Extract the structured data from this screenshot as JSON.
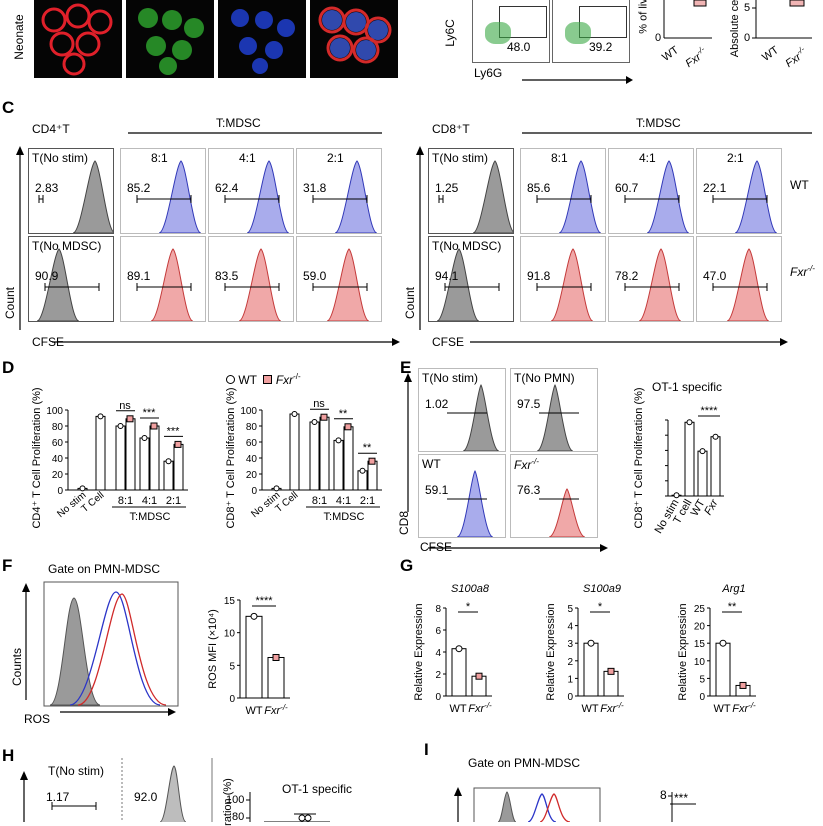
{
  "panel_a": {
    "row_label": "Neonate"
  },
  "panel_b": {
    "ylab": "Ly6C",
    "xlab": "Ly6G",
    "gate1": "48.0",
    "gate2": "39.2",
    "bar_y1": "% of liv",
    "bar_y2": "Absolute cell",
    "x_wt": "WT",
    "x_ko": "Fxr",
    "ko_sup": "-/-"
  },
  "panel_c": {
    "letter": "C",
    "cd4_title": "CD4⁺T",
    "cd8_title": "CD8⁺T",
    "ratio_header": "T:MDSC",
    "col_titles": [
      "T(No stim)",
      "8:1",
      "4:1",
      "2:1"
    ],
    "row2_first": "T(No MDSC)",
    "cd4_wt": [
      "2.83",
      "85.2",
      "62.4",
      "31.8"
    ],
    "cd4_ko": [
      "90.9",
      "89.1",
      "83.5",
      "59.0"
    ],
    "cd8_wt": [
      "1.25",
      "85.6",
      "60.7",
      "22.1"
    ],
    "cd8_ko": [
      "94.1",
      "91.8",
      "78.2",
      "47.0"
    ],
    "row_wt": "WT",
    "row_ko": "Fxr",
    "ko_sup": "-/-",
    "ylab": "Count",
    "xlab": "CFSE"
  },
  "panel_d": {
    "letter": "D",
    "legend_wt": "WT",
    "legend_ko": "Fxr",
    "ko_sup": "-/-",
    "ylab_cd4": "CD4⁺ T Cell Proliferation (%)",
    "ylab_cd8": "CD8⁺ T Cell Proliferation (%)",
    "yticks": [
      "0",
      "20",
      "40",
      "60",
      "80",
      "100"
    ],
    "xcats": [
      "No stim",
      "T Cell",
      "8:1",
      "4:1",
      "2:1"
    ],
    "xgroup": "T:MDSC",
    "sig_cd4": [
      "ns",
      "***",
      "***"
    ],
    "sig_cd8": [
      "ns",
      "**",
      "**"
    ]
  },
  "panel_e": {
    "letter": "E",
    "titles": [
      "T(No stim)",
      "T(No PMN)",
      "WT",
      "Fxr"
    ],
    "vals": [
      "1.02",
      "97.5",
      "59.1",
      "76.3"
    ],
    "ylab": "CD8",
    "xlab": "CFSE",
    "chart_title": "OT-1 specific",
    "chart_ylab": "CD8⁺ T Cell Proliferation (%)",
    "xcats": [
      "No stim",
      "T cell",
      "WT",
      "Fxr"
    ],
    "ko_sup": "-/-",
    "sig": "****"
  },
  "panel_f": {
    "letter": "F",
    "gate": "Gate on PMN-MDSC",
    "ylab": "Counts",
    "xlab": "ROS",
    "bar_ylab": "ROS MFI (×10⁴)",
    "yticks": [
      "0",
      "5",
      "10",
      "15"
    ],
    "sig": "****",
    "x_wt": "WT",
    "x_ko": "Fxr",
    "ko_sup": "-/-"
  },
  "panel_g": {
    "letter": "G",
    "ylab": "Relative Expression",
    "genes": [
      {
        "name": "S100a8",
        "yticks": [
          "0",
          "2",
          "4",
          "6",
          "8"
        ],
        "sig": "*"
      },
      {
        "name": "S100a9",
        "yticks": [
          "0",
          "1",
          "2",
          "3",
          "4",
          "5"
        ],
        "sig": "*"
      },
      {
        "name": "Arg1",
        "yticks": [
          "0",
          "5",
          "10",
          "15",
          "20",
          "25"
        ],
        "sig": "**"
      }
    ],
    "x_wt": "WT",
    "x_ko": "Fxr",
    "ko_sup": "-/-"
  },
  "panel_h": {
    "letter": "H",
    "title1": "T(No stim)",
    "val1": "1.17",
    "val2": "92.0",
    "chart_title": "OT-1 specific",
    "chart_ylab": "ration (%)",
    "yticks": [
      "100",
      "80"
    ]
  },
  "panel_i": {
    "letter": "I",
    "gate": "Gate on PMN-MDSC",
    "sig": "***",
    "ytick": "8"
  },
  "chart_data": [
    {
      "type": "bar",
      "name": "D-CD4",
      "categories": [
        "No stim",
        "T Cell",
        "8:1",
        "4:1",
        "2:1"
      ],
      "series": [
        {
          "name": "WT",
          "values": [
            2,
            92,
            80,
            65,
            36
          ]
        },
        {
          "name": "Fxr-/-",
          "values": [
            null,
            null,
            89,
            80,
            57
          ]
        }
      ],
      "ylim": [
        0,
        100
      ]
    },
    {
      "type": "bar",
      "name": "D-CD8",
      "categories": [
        "No stim",
        "T Cell",
        "8:1",
        "4:1",
        "2:1"
      ],
      "series": [
        {
          "name": "WT",
          "values": [
            2,
            95,
            85,
            62,
            24
          ]
        },
        {
          "name": "Fxr-/-",
          "values": [
            null,
            null,
            91,
            79,
            36
          ]
        }
      ],
      "ylim": [
        0,
        100
      ]
    },
    {
      "type": "bar",
      "name": "E",
      "categories": [
        "No stim",
        "T cell",
        "WT",
        "Fxr-/-"
      ],
      "values": [
        1,
        97,
        59,
        78
      ],
      "ylim": [
        0,
        100
      ]
    },
    {
      "type": "bar",
      "name": "F",
      "categories": [
        "WT",
        "Fxr-/-"
      ],
      "values": [
        12.5,
        6.2
      ],
      "ylim": [
        0,
        15
      ]
    },
    {
      "type": "bar",
      "name": "S100a8",
      "categories": [
        "WT",
        "Fxr-/-"
      ],
      "values": [
        4.3,
        1.8
      ],
      "ylim": [
        0,
        8
      ]
    },
    {
      "type": "bar",
      "name": "S100a9",
      "categories": [
        "WT",
        "Fxr-/-"
      ],
      "values": [
        3.0,
        1.4
      ],
      "ylim": [
        0,
        5
      ]
    },
    {
      "type": "bar",
      "name": "Arg1",
      "categories": [
        "WT",
        "Fxr-/-"
      ],
      "values": [
        15,
        3
      ],
      "ylim": [
        0,
        25
      ]
    }
  ]
}
